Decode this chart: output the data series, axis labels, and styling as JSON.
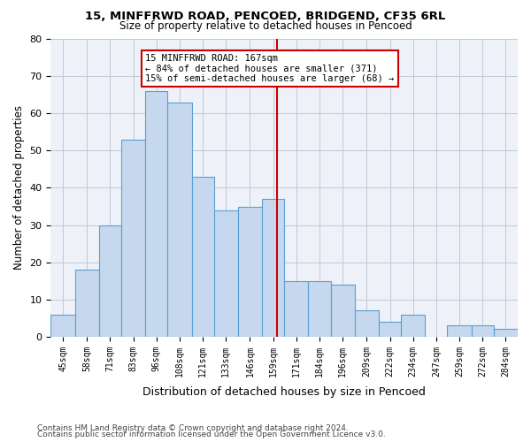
{
  "title1": "15, MINFFRWD ROAD, PENCOED, BRIDGEND, CF35 6RL",
  "title2": "Size of property relative to detached houses in Pencoed",
  "xlabel": "Distribution of detached houses by size in Pencoed",
  "ylabel": "Number of detached properties",
  "footnote1": "Contains HM Land Registry data © Crown copyright and database right 2024.",
  "footnote2": "Contains public sector information licensed under the Open Government Licence v3.0.",
  "bar_edges": [
    45,
    58,
    71,
    83,
    96,
    108,
    121,
    133,
    146,
    159,
    171,
    184,
    196,
    209,
    222,
    234,
    247,
    259,
    272,
    284,
    297
  ],
  "bar_heights": [
    6,
    18,
    30,
    53,
    66,
    63,
    43,
    34,
    35,
    37,
    15,
    15,
    14,
    7,
    4,
    6,
    0,
    3,
    3,
    2
  ],
  "bar_color": "#c5d8ed",
  "bar_edge_color": "#5a9fd4",
  "property_size": 167,
  "vline_color": "#cc0000",
  "annotation_text": "15 MINFFRWD ROAD: 167sqm\n← 84% of detached houses are smaller (371)\n15% of semi-detached houses are larger (68) →",
  "annotation_box_color": "#cc0000",
  "ylim": [
    0,
    80
  ],
  "yticks": [
    0,
    10,
    20,
    30,
    40,
    50,
    60,
    70,
    80
  ],
  "grid_color": "#c0c8d8",
  "bg_color": "#eef2f8"
}
